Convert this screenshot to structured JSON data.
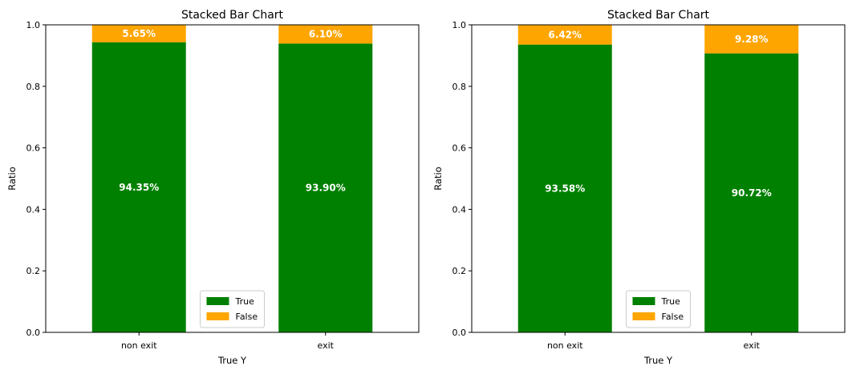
{
  "colors": {
    "True": "#008000",
    "False": "#FFA500"
  },
  "chart_data": [
    {
      "type": "bar",
      "stacked": true,
      "title": "Stacked Bar Chart",
      "xlabel": "True Y",
      "ylabel": "Ratio",
      "ylim": [
        0,
        1
      ],
      "yticks": [
        "0.0",
        "0.2",
        "0.4",
        "0.6",
        "0.8",
        "1.0"
      ],
      "categories": [
        "non exit",
        "exit"
      ],
      "series": [
        {
          "name": "True",
          "values": [
            0.9435,
            0.939
          ],
          "labels": [
            "94.35%",
            "93.90%"
          ]
        },
        {
          "name": "False",
          "values": [
            0.0565,
            0.061
          ],
          "labels": [
            "5.65%",
            "6.10%"
          ]
        }
      ],
      "legend": "lower center"
    },
    {
      "type": "bar",
      "stacked": true,
      "title": "Stacked Bar Chart",
      "xlabel": "True Y",
      "ylabel": "Ratio",
      "ylim": [
        0,
        1
      ],
      "yticks": [
        "0.0",
        "0.2",
        "0.4",
        "0.6",
        "0.8",
        "1.0"
      ],
      "categories": [
        "non exit",
        "exit"
      ],
      "series": [
        {
          "name": "True",
          "values": [
            0.9358,
            0.9072
          ],
          "labels": [
            "93.58%",
            "90.72%"
          ]
        },
        {
          "name": "False",
          "values": [
            0.0642,
            0.0928
          ],
          "labels": [
            "6.42%",
            "9.28%"
          ]
        }
      ],
      "legend": "lower center"
    }
  ]
}
